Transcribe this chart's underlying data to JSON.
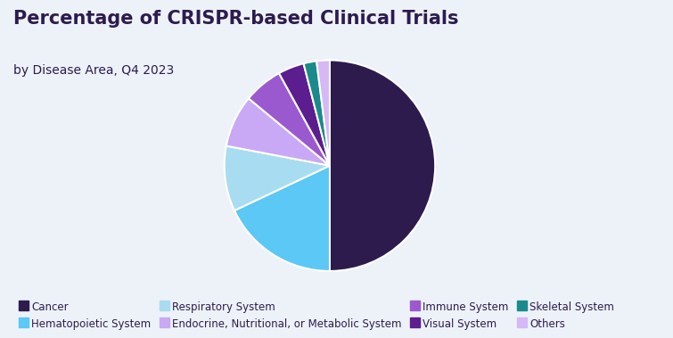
{
  "title": "Percentage of CRISPR-based Clinical Trials",
  "subtitle": "by Disease Area, Q4 2023",
  "labels": [
    "Cancer",
    "Hematopoietic System",
    "Respiratory System",
    "Endocrine, Nutritional, or Metabolic System",
    "Immune System",
    "Visual System",
    "Skeletal System",
    "Others"
  ],
  "values": [
    50,
    18,
    10,
    8,
    6,
    4,
    2,
    2
  ],
  "colors": [
    "#2d1b4e",
    "#5bc8f5",
    "#a8dcf0",
    "#c9a8f5",
    "#9b59d0",
    "#5c1d8f",
    "#1a8a8a",
    "#d5b8f5"
  ],
  "background_color": "#edf2f8",
  "title_color": "#2d1b4e",
  "subtitle_color": "#2d1b4e",
  "title_fontsize": 15,
  "subtitle_fontsize": 10,
  "legend_fontsize": 8.5
}
